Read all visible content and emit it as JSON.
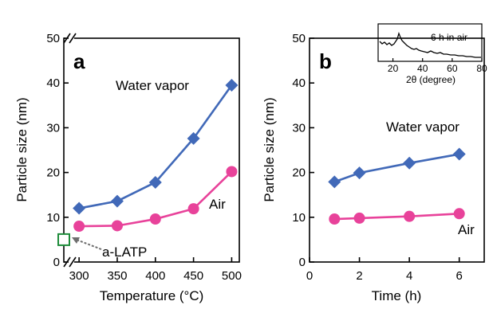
{
  "colors": {
    "water_vapor": "#4169b8",
    "air": "#e8429a",
    "a_latp": "#1e8c3a",
    "arrow": "#6e6e6e"
  },
  "chart_data": [
    {
      "type": "line",
      "panel_label": "a",
      "xlabel": "Temperature (°C)",
      "ylabel": "Particle size (nm)",
      "xlim": [
        280,
        510
      ],
      "ylim": [
        0,
        50
      ],
      "x_axis_break": true,
      "xticks": [
        300,
        350,
        400,
        450,
        500
      ],
      "xtick_labels": [
        "300",
        "350",
        "400",
        "450",
        "500"
      ],
      "yticks": [
        0,
        10,
        20,
        30,
        40,
        50
      ],
      "ytick_labels": [
        "0",
        "10",
        "20",
        "30",
        "40",
        "50"
      ],
      "series": [
        {
          "name": "Water vapor",
          "marker": "diamond",
          "x": [
            300,
            350,
            400,
            450,
            500
          ],
          "values": [
            12,
            13.6,
            17.8,
            27.6,
            39.5
          ]
        },
        {
          "name": "Air",
          "marker": "circle",
          "x": [
            300,
            350,
            400,
            450,
            500
          ],
          "values": [
            8,
            8.1,
            9.6,
            11.9,
            20.2
          ]
        }
      ],
      "reference_point": {
        "name": "a-LATP",
        "marker": "open-square",
        "value": 5
      }
    },
    {
      "type": "line",
      "panel_label": "b",
      "xlabel": "Time (h)",
      "ylabel": "Particle size (nm)",
      "xlim": [
        0,
        7
      ],
      "ylim": [
        0,
        50
      ],
      "xticks": [
        0,
        2,
        4,
        6
      ],
      "xtick_labels": [
        "0",
        "2",
        "4",
        "6"
      ],
      "yticks": [
        0,
        10,
        20,
        30,
        40,
        50
      ],
      "ytick_labels": [
        "0",
        "10",
        "20",
        "30",
        "40",
        "50"
      ],
      "series": [
        {
          "name": "Water vapor",
          "marker": "diamond",
          "x": [
            1,
            2,
            4,
            6
          ],
          "values": [
            17.9,
            19.9,
            22.1,
            24.1
          ]
        },
        {
          "name": "Air",
          "marker": "circle",
          "x": [
            1,
            2,
            4,
            6
          ],
          "values": [
            9.6,
            9.8,
            10.2,
            10.8
          ]
        }
      ],
      "inset": {
        "type": "line",
        "label": "6 h in air",
        "xlabel": "2θ (degree)",
        "xlim": [
          10,
          80
        ],
        "xticks": [
          20,
          40,
          60,
          80
        ],
        "xtick_labels": [
          "20",
          "40",
          "60",
          "80"
        ]
      }
    }
  ]
}
